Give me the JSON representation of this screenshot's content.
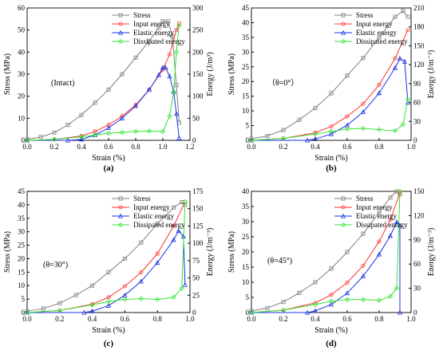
{
  "chart_data": [
    {
      "type": "line",
      "panel_label": "(a)",
      "annotation": "(Intact)",
      "xlabel": "Strain (%)",
      "ylabel_left": "Stress (MPa)",
      "ylabel_right": "Energy (J/m³)",
      "xlim": [
        0,
        1.2
      ],
      "xticks": [
        0.0,
        0.2,
        0.4,
        0.6,
        0.8,
        1.0,
        1.2
      ],
      "ylim_left": [
        0,
        60
      ],
      "yticks_left": [
        0,
        10,
        20,
        30,
        40,
        50,
        60
      ],
      "ylim_right": [
        0,
        300
      ],
      "yticks_right": [
        0,
        50,
        100,
        150,
        200,
        250,
        300
      ],
      "legend": [
        "Stress",
        "Input energy",
        "Elastic energy",
        "Dissipated energy"
      ],
      "legend_position": "top-right",
      "series": [
        {
          "name": "Stress",
          "axis": "left",
          "x": [
            0,
            0.1,
            0.2,
            0.3,
            0.4,
            0.5,
            0.6,
            0.7,
            0.8,
            0.9,
            0.97,
            1.0,
            1.04,
            1.07,
            1.1,
            1.12
          ],
          "y": [
            0.5,
            1.5,
            3.5,
            7,
            11.5,
            17,
            23,
            30,
            37.5,
            45,
            51,
            54,
            54,
            47,
            25,
            8
          ]
        },
        {
          "name": "Input energy",
          "axis": "right",
          "x": [
            0,
            0.2,
            0.4,
            0.5,
            0.6,
            0.7,
            0.8,
            0.9,
            1.0,
            1.05,
            1.1,
            1.12
          ],
          "y": [
            0,
            2,
            10,
            20,
            35,
            55,
            80,
            115,
            160,
            195,
            250,
            265
          ]
        },
        {
          "name": "Elastic energy",
          "axis": "right",
          "x": [
            0,
            0.3,
            0.4,
            0.5,
            0.6,
            0.7,
            0.8,
            0.9,
            0.97,
            1.0,
            1.02,
            1.05,
            1.08,
            1.1,
            1.12
          ],
          "y": [
            0,
            0,
            2,
            12,
            28,
            50,
            78,
            115,
            148,
            165,
            165,
            145,
            110,
            60,
            5
          ]
        },
        {
          "name": "Dissipated energy",
          "axis": "right",
          "x": [
            0,
            0.2,
            0.4,
            0.5,
            0.6,
            0.7,
            0.8,
            0.9,
            1.0,
            1.05,
            1.08,
            1.1,
            1.12
          ],
          "y": [
            0,
            2,
            8,
            12,
            16,
            18,
            20,
            21,
            20,
            55,
            110,
            200,
            260
          ]
        }
      ]
    },
    {
      "type": "line",
      "panel_label": "(b)",
      "annotation": "（θ=0°）",
      "xlabel": "Strain (%)",
      "ylabel_left": "Stress (MPa)",
      "ylabel_right": "Energy (J/m⁻³)",
      "xlim": [
        0,
        1.0
      ],
      "xticks": [
        0.0,
        0.2,
        0.4,
        0.6,
        0.8,
        1.0
      ],
      "ylim_left": [
        0,
        45
      ],
      "yticks_left": [
        0,
        5,
        10,
        15,
        20,
        25,
        30,
        35,
        40,
        45
      ],
      "ylim_right": [
        0,
        210
      ],
      "yticks_right": [
        0,
        30,
        60,
        90,
        120,
        150,
        180,
        210
      ],
      "legend": [
        "Stress",
        "Input energy",
        "Elastic energy",
        "Dissipated energy"
      ],
      "legend_position": "top-right",
      "series": [
        {
          "name": "Stress",
          "axis": "left",
          "x": [
            0,
            0.1,
            0.2,
            0.3,
            0.4,
            0.5,
            0.6,
            0.7,
            0.8,
            0.9,
            0.95,
            0.98
          ],
          "y": [
            0.5,
            1.5,
            3.5,
            7,
            11,
            16,
            22,
            28,
            35,
            42,
            44,
            42
          ]
        },
        {
          "name": "Input energy",
          "axis": "right",
          "x": [
            0,
            0.2,
            0.4,
            0.5,
            0.6,
            0.7,
            0.8,
            0.9,
            0.98
          ],
          "y": [
            0,
            3,
            12,
            22,
            38,
            58,
            88,
            130,
            175
          ]
        },
        {
          "name": "Elastic energy",
          "axis": "right",
          "x": [
            0,
            0.35,
            0.4,
            0.5,
            0.6,
            0.7,
            0.8,
            0.9,
            0.93,
            0.96,
            0.98
          ],
          "y": [
            0,
            0,
            2,
            10,
            24,
            45,
            75,
            115,
            130,
            125,
            60
          ]
        },
        {
          "name": "Dissipated energy",
          "axis": "right",
          "x": [
            0,
            0.2,
            0.4,
            0.5,
            0.6,
            0.7,
            0.8,
            0.9,
            0.95,
            0.98
          ],
          "y": [
            0,
            3,
            10,
            14,
            18,
            19,
            17,
            15,
            25,
            65
          ]
        }
      ]
    },
    {
      "type": "line",
      "panel_label": "(c)",
      "annotation": "(θ=30°)",
      "xlabel": "Strain (%)",
      "ylabel_left": "Stress (MPa)",
      "ylabel_right": "Energy (J/m⁻³)",
      "xlim": [
        0,
        1.0
      ],
      "xticks": [
        0.0,
        0.2,
        0.4,
        0.6,
        0.8,
        1.0
      ],
      "ylim_left": [
        0,
        45
      ],
      "yticks_left": [
        0,
        5,
        10,
        15,
        20,
        25,
        30,
        35,
        40,
        45
      ],
      "ylim_right": [
        0,
        175
      ],
      "yticks_right": [
        0,
        25,
        50,
        75,
        100,
        125,
        150,
        175
      ],
      "legend": [
        "Stress",
        "Input energy",
        "Elastic energy",
        "Dissipated energy"
      ],
      "legend_position": "top-right",
      "series": [
        {
          "name": "Stress",
          "axis": "left",
          "x": [
            0,
            0.1,
            0.2,
            0.3,
            0.4,
            0.5,
            0.6,
            0.7,
            0.8,
            0.9,
            0.95,
            0.97
          ],
          "y": [
            0.5,
            1.5,
            3.5,
            6.5,
            10,
            15,
            20,
            26,
            33,
            39,
            41,
            40
          ]
        },
        {
          "name": "Input energy",
          "axis": "right",
          "x": [
            0,
            0.2,
            0.4,
            0.5,
            0.6,
            0.7,
            0.8,
            0.9,
            0.97
          ],
          "y": [
            0,
            3,
            12,
            22,
            38,
            58,
            85,
            125,
            160
          ]
        },
        {
          "name": "Elastic energy",
          "axis": "right",
          "x": [
            0,
            0.35,
            0.4,
            0.5,
            0.6,
            0.7,
            0.8,
            0.9,
            0.93,
            0.96,
            0.97
          ],
          "y": [
            0,
            0,
            2,
            10,
            25,
            45,
            72,
            105,
            118,
            110,
            40
          ]
        },
        {
          "name": "Dissipated energy",
          "axis": "right",
          "x": [
            0,
            0.2,
            0.4,
            0.5,
            0.6,
            0.7,
            0.8,
            0.9,
            0.95,
            0.97
          ],
          "y": [
            0,
            3,
            11,
            16,
            19,
            20,
            19,
            22,
            35,
            160
          ]
        }
      ]
    },
    {
      "type": "line",
      "panel_label": "(d)",
      "annotation": "(θ=45°)",
      "xlabel": "Strain (%)",
      "ylabel_left": "Stress (MPa)",
      "ylabel_right": "Energy (J/m⁻³)",
      "xlim": [
        0,
        1.0
      ],
      "xticks": [
        0.0,
        0.2,
        0.4,
        0.6,
        0.8,
        1.0
      ],
      "ylim_left": [
        0,
        40
      ],
      "yticks_left": [
        0,
        5,
        10,
        15,
        20,
        25,
        30,
        35,
        40
      ],
      "ylim_right": [
        0,
        150
      ],
      "yticks_right": [
        0,
        30,
        60,
        90,
        120,
        150
      ],
      "legend": [
        "Stress",
        "Input energy",
        "Elastic energy",
        "Dissipated energy"
      ],
      "legend_position": "top-right",
      "series": [
        {
          "name": "Stress",
          "axis": "left",
          "x": [
            0,
            0.1,
            0.2,
            0.3,
            0.4,
            0.5,
            0.6,
            0.7,
            0.8,
            0.87,
            0.91,
            0.93
          ],
          "y": [
            0.5,
            1.5,
            3.5,
            6.5,
            10,
            14.5,
            20,
            26,
            33,
            38,
            40,
            39
          ]
        },
        {
          "name": "Input energy",
          "axis": "right",
          "x": [
            0,
            0.2,
            0.4,
            0.5,
            0.6,
            0.7,
            0.8,
            0.87,
            0.93
          ],
          "y": [
            0,
            3,
            12,
            22,
            37,
            58,
            88,
            115,
            148
          ]
        },
        {
          "name": "Elastic energy",
          "axis": "right",
          "x": [
            0,
            0.35,
            0.4,
            0.5,
            0.6,
            0.7,
            0.8,
            0.87,
            0.91,
            0.93,
            0.93
          ],
          "y": [
            0,
            0,
            2,
            10,
            24,
            45,
            72,
            95,
            112,
            108,
            0
          ]
        },
        {
          "name": "Dissipated energy",
          "axis": "right",
          "x": [
            0,
            0.2,
            0.4,
            0.5,
            0.6,
            0.7,
            0.8,
            0.87,
            0.91,
            0.93
          ],
          "y": [
            0,
            3,
            10,
            14,
            16,
            16,
            15,
            20,
            30,
            150
          ]
        }
      ]
    }
  ]
}
